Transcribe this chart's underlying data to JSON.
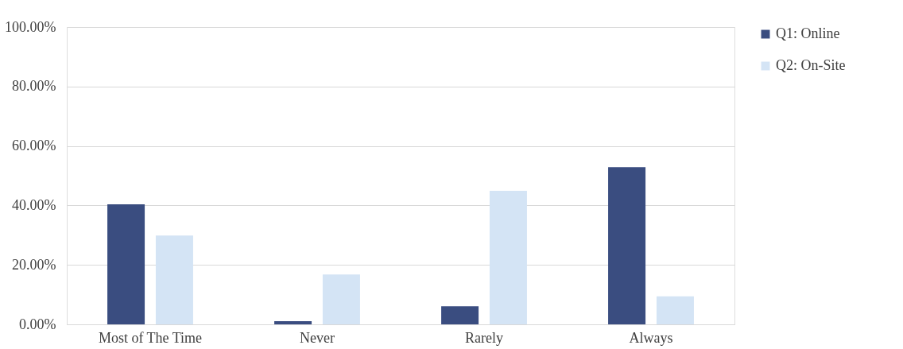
{
  "chart_data": {
    "type": "bar",
    "categories": [
      "Most of The Time",
      "Never",
      "Rarely",
      "Always"
    ],
    "series": [
      {
        "name": "Q1: Online",
        "color": "#3a4d80",
        "values": [
          40.4,
          1.1,
          6.1,
          52.9
        ]
      },
      {
        "name": "Q2: On-Site",
        "color": "#d4e4f5",
        "values": [
          29.9,
          16.8,
          44.9,
          9.4
        ]
      }
    ],
    "ylim": [
      0,
      100
    ],
    "yticks": [
      {
        "value": 0,
        "label": "0.00%"
      },
      {
        "value": 20,
        "label": "20.00%"
      },
      {
        "value": 40,
        "label": "40.00%"
      },
      {
        "value": 60,
        "label": "60.00%"
      },
      {
        "value": 80,
        "label": "80.00%"
      },
      {
        "value": 100,
        "label": "100.00%"
      }
    ],
    "grid": "y",
    "legend": "right"
  }
}
